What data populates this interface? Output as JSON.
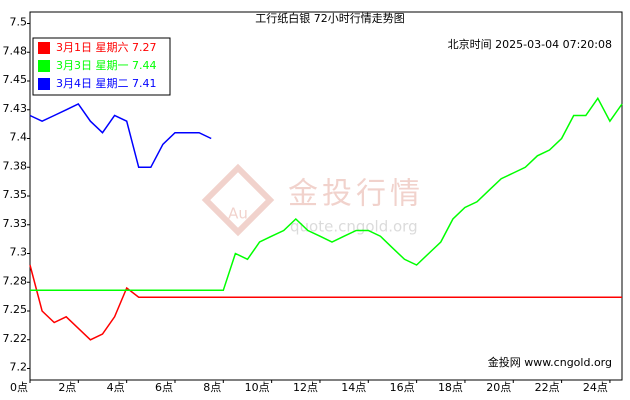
{
  "chart_data": {
    "type": "line",
    "title": "工行纸白银 72小时行情走势图",
    "timestamp": "北京时间 2025-03-04 07:20:08",
    "watermark": "金投行情",
    "watermark_logo": "Au",
    "watermark_url": "quote.cngold.org",
    "source": "金投网 www.cngold.org",
    "xlim": [
      0,
      24.5
    ],
    "ylim": [
      7.19,
      7.51
    ],
    "xticks": [
      {
        "value": 0,
        "label": "0点"
      },
      {
        "value": 2,
        "label": "2点"
      },
      {
        "value": 4,
        "label": "4点"
      },
      {
        "value": 6,
        "label": "6点"
      },
      {
        "value": 8,
        "label": "8点"
      },
      {
        "value": 10,
        "label": "10点"
      },
      {
        "value": 12,
        "label": "12点"
      },
      {
        "value": 14,
        "label": "14点"
      },
      {
        "value": 16,
        "label": "16点"
      },
      {
        "value": 18,
        "label": "18点"
      },
      {
        "value": 20,
        "label": "20点"
      },
      {
        "value": 22,
        "label": "22点"
      },
      {
        "value": 24,
        "label": "24点"
      }
    ],
    "yticks": [
      7.5,
      {
        "value": 7.475,
        "label": "7.48"
      },
      7.45,
      {
        "value": 7.425,
        "label": "7.43"
      },
      7.4,
      {
        "value": 7.375,
        "label": "7.38"
      },
      7.35,
      {
        "value": 7.325,
        "label": "7.33"
      },
      7.3,
      {
        "value": 7.275,
        "label": "7.28"
      },
      7.25,
      {
        "value": 7.225,
        "label": "7.22"
      },
      7.2
    ],
    "legend": "upper left",
    "x": [
      0,
      0.5,
      1,
      1.5,
      2,
      2.5,
      3,
      3.5,
      4,
      4.5,
      5,
      5.5,
      6,
      6.5,
      7,
      7.5,
      8,
      8.5,
      9,
      9.5,
      10,
      10.5,
      11,
      11.5,
      12,
      12.5,
      13,
      13.5,
      14,
      14.5,
      15,
      15.5,
      16,
      16.5,
      17,
      17.5,
      18,
      18.5,
      19,
      19.5,
      20,
      20.5,
      21,
      21.5,
      22,
      22.5,
      23,
      23.5,
      24,
      24.5
    ],
    "series": [
      {
        "name": "3月1日 星期六 7.27",
        "color": "#ff0000",
        "values": [
          7.29,
          7.25,
          7.24,
          7.245,
          7.235,
          7.225,
          7.23,
          7.245,
          7.27,
          7.262,
          7.262,
          7.262,
          7.262,
          7.262,
          7.262,
          7.262,
          7.262,
          7.262,
          7.262,
          7.262,
          7.262,
          7.262,
          7.262,
          7.262,
          7.262,
          7.262,
          7.262,
          7.262,
          7.262,
          7.262,
          7.262,
          7.262,
          7.262,
          7.262,
          7.262,
          7.262,
          7.262,
          7.262,
          7.262,
          7.262,
          7.262,
          7.262,
          7.262,
          7.262,
          7.262,
          7.262,
          7.262,
          7.262,
          7.262,
          7.262
        ]
      },
      {
        "name": "3月3日 星期一 7.44",
        "color": "#00ff00",
        "values": [
          7.268,
          7.268,
          7.268,
          7.268,
          7.268,
          7.268,
          7.268,
          7.268,
          7.268,
          7.268,
          7.268,
          7.268,
          7.268,
          7.268,
          7.268,
          7.268,
          7.268,
          7.3,
          7.295,
          7.31,
          7.315,
          7.32,
          7.33,
          7.32,
          7.315,
          7.31,
          7.315,
          7.32,
          7.32,
          7.315,
          7.305,
          7.295,
          7.29,
          7.3,
          7.31,
          7.33,
          7.34,
          7.345,
          7.355,
          7.365,
          7.37,
          7.375,
          7.385,
          7.39,
          7.4,
          7.42,
          7.42,
          7.435,
          7.415,
          7.43
        ]
      },
      {
        "name": "3月4日 星期二 7.41",
        "color": "#0000ff",
        "values": [
          7.42,
          7.415,
          7.42,
          7.425,
          7.43,
          7.415,
          7.405,
          7.42,
          7.415,
          7.375,
          7.375,
          7.395,
          7.405,
          7.405,
          7.405,
          7.4,
          null,
          null,
          null,
          null,
          null,
          null,
          null,
          null,
          null,
          null,
          null,
          null,
          null,
          null,
          null,
          null,
          null,
          null,
          null,
          null,
          null,
          null,
          null,
          null,
          null,
          null,
          null,
          null,
          null,
          null,
          null,
          null,
          null,
          null
        ]
      }
    ]
  }
}
